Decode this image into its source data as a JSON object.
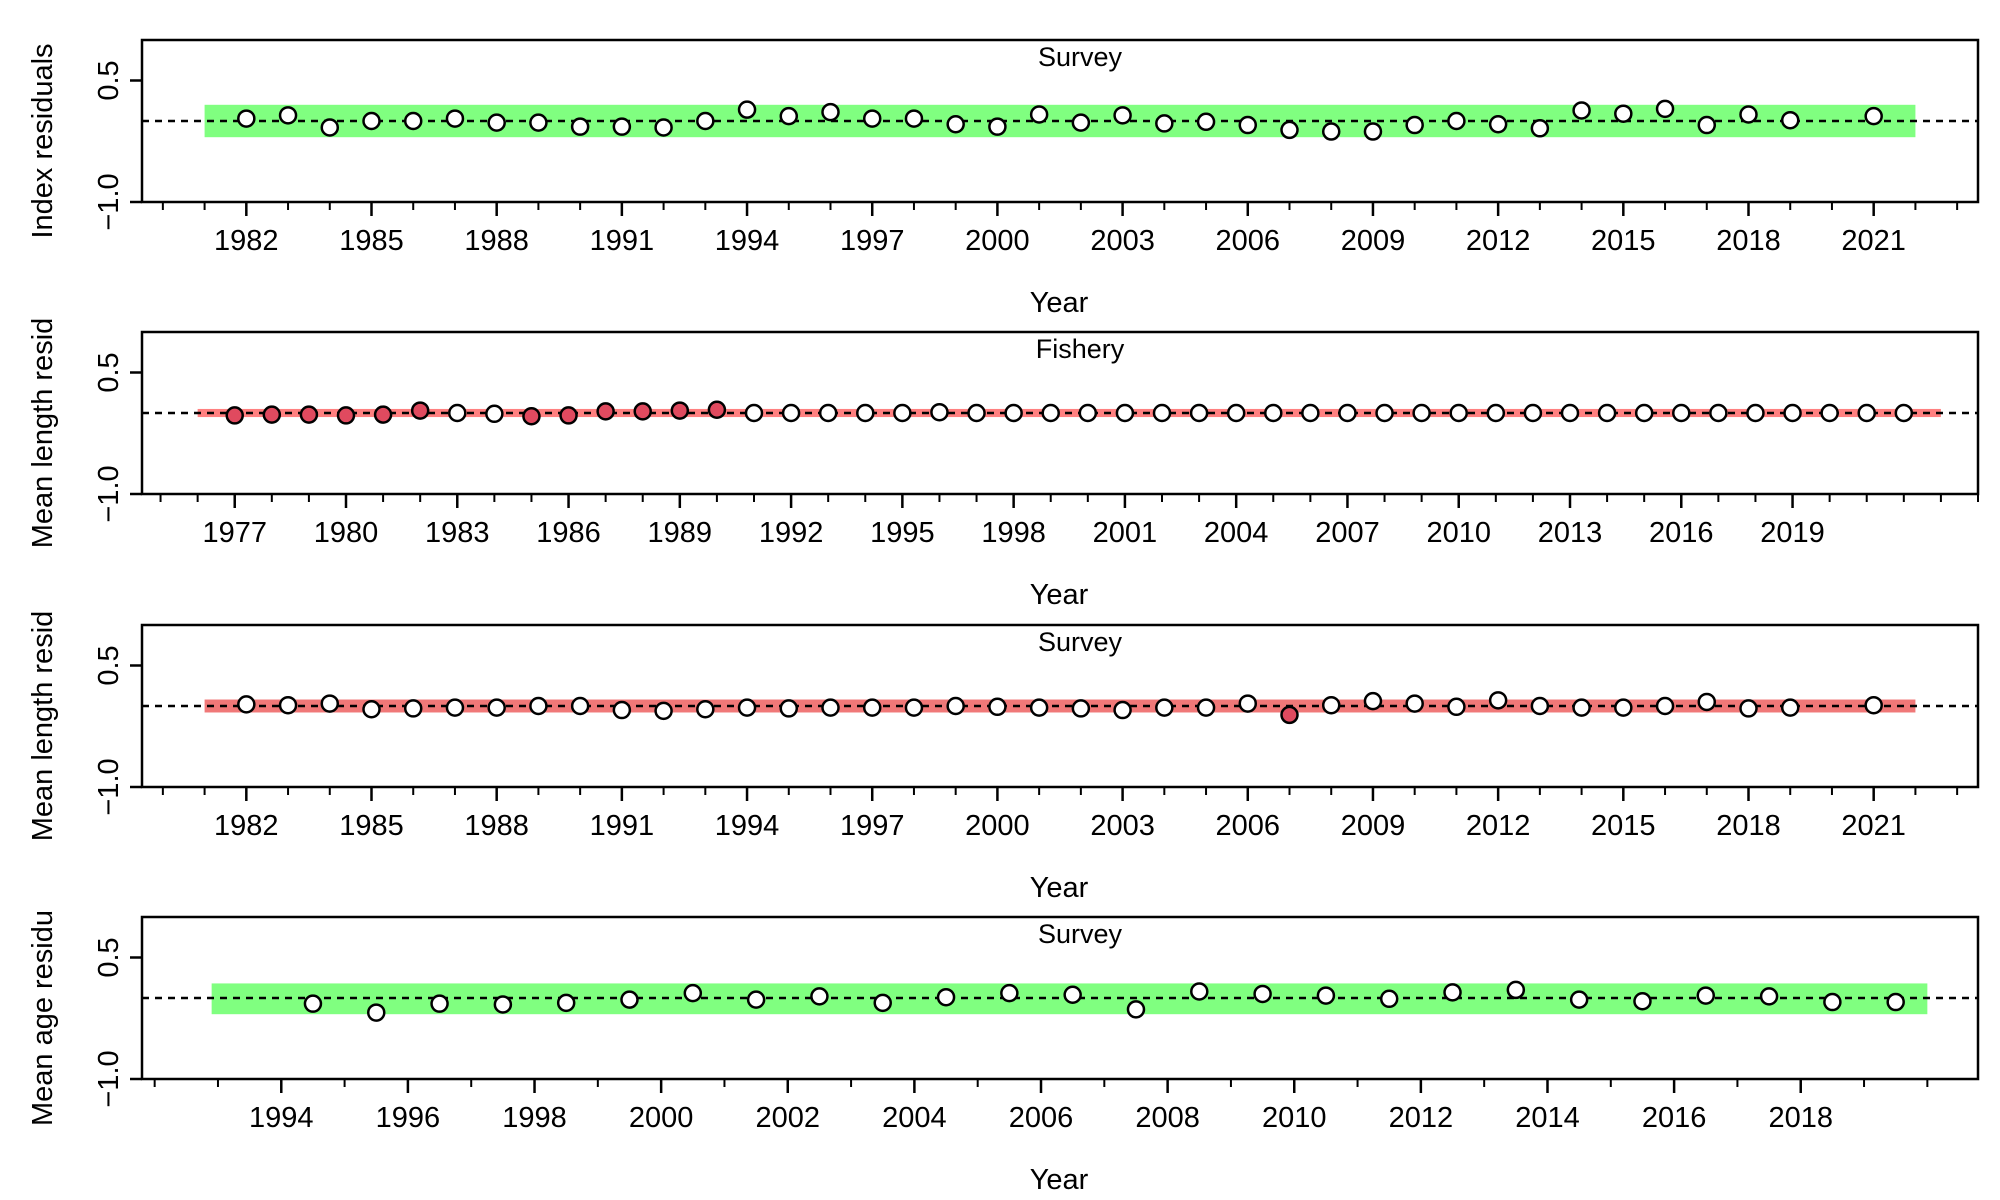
{
  "chart_data": [
    {
      "type": "scatter",
      "title": "Survey",
      "xlabel": "Year",
      "ylabel": "Index residuals",
      "ylim": [
        -1.0,
        1.0
      ],
      "y_ticks": [
        -1.0,
        0.5
      ],
      "y_tick_labels": [
        "−1.0",
        "0.5"
      ],
      "x_ticks": [
        1982,
        1985,
        1988,
        1991,
        1994,
        1997,
        2000,
        2003,
        2006,
        2009,
        2012,
        2015,
        2018,
        2021
      ],
      "x_minor_every": 1,
      "xlim": [
        1979.5,
        2023.5
      ],
      "band": {
        "xrange": [
          1981,
          2022
        ],
        "ymin": -0.2,
        "ymax": 0.2,
        "color": "#80ff80"
      },
      "reference_line": 0,
      "point_fill": "#ffffff",
      "highlight_fill": "#e04a5f",
      "points": [
        {
          "x": 1982,
          "y": 0.03
        },
        {
          "x": 1983,
          "y": 0.07
        },
        {
          "x": 1984,
          "y": -0.08
        },
        {
          "x": 1985,
          "y": 0.0
        },
        {
          "x": 1986,
          "y": 0.0
        },
        {
          "x": 1987,
          "y": 0.03
        },
        {
          "x": 1988,
          "y": -0.02
        },
        {
          "x": 1989,
          "y": -0.02
        },
        {
          "x": 1990,
          "y": -0.07
        },
        {
          "x": 1991,
          "y": -0.07
        },
        {
          "x": 1992,
          "y": -0.08
        },
        {
          "x": 1993,
          "y": 0.0
        },
        {
          "x": 1994,
          "y": 0.14
        },
        {
          "x": 1995,
          "y": 0.06
        },
        {
          "x": 1996,
          "y": 0.11
        },
        {
          "x": 1997,
          "y": 0.03
        },
        {
          "x": 1998,
          "y": 0.03
        },
        {
          "x": 1999,
          "y": -0.04
        },
        {
          "x": 2000,
          "y": -0.07
        },
        {
          "x": 2001,
          "y": 0.08
        },
        {
          "x": 2002,
          "y": -0.02
        },
        {
          "x": 2003,
          "y": 0.07
        },
        {
          "x": 2004,
          "y": -0.03
        },
        {
          "x": 2005,
          "y": -0.01
        },
        {
          "x": 2006,
          "y": -0.05
        },
        {
          "x": 2007,
          "y": -0.11
        },
        {
          "x": 2008,
          "y": -0.13
        },
        {
          "x": 2009,
          "y": -0.13
        },
        {
          "x": 2010,
          "y": -0.05
        },
        {
          "x": 2011,
          "y": 0.0
        },
        {
          "x": 2012,
          "y": -0.04
        },
        {
          "x": 2013,
          "y": -0.09
        },
        {
          "x": 2014,
          "y": 0.13
        },
        {
          "x": 2015,
          "y": 0.09
        },
        {
          "x": 2016,
          "y": 0.15
        },
        {
          "x": 2017,
          "y": -0.05
        },
        {
          "x": 2018,
          "y": 0.08
        },
        {
          "x": 2019,
          "y": 0.01
        },
        {
          "x": 2021,
          "y": 0.06
        }
      ]
    },
    {
      "type": "scatter",
      "title": "Fishery",
      "xlabel": "Year",
      "ylabel": "Mean length resid",
      "ylim": [
        -1.0,
        1.0
      ],
      "y_ticks": [
        -1.0,
        0.5
      ],
      "y_tick_labels": [
        "−1.0",
        "0.5"
      ],
      "x_ticks": [
        1977,
        1980,
        1983,
        1986,
        1989,
        1992,
        1995,
        1998,
        2001,
        2004,
        2007,
        2010,
        2013,
        2016,
        2019
      ],
      "x_minor_every": 1,
      "xlim": [
        1974.5,
        2024.0
      ],
      "band": {
        "xrange": [
          1976,
          2023
        ],
        "ymin": -0.05,
        "ymax": 0.05,
        "color": "#ff8080"
      },
      "reference_line": 0,
      "point_fill": "#ffffff",
      "highlight_fill": "#e04a5f",
      "points": [
        {
          "x": 1977,
          "y": -0.03,
          "h": true
        },
        {
          "x": 1978,
          "y": -0.02,
          "h": true
        },
        {
          "x": 1979,
          "y": -0.02,
          "h": true
        },
        {
          "x": 1980,
          "y": -0.03,
          "h": true
        },
        {
          "x": 1981,
          "y": -0.02,
          "h": true
        },
        {
          "x": 1982,
          "y": 0.03,
          "h": true
        },
        {
          "x": 1983,
          "y": 0.0
        },
        {
          "x": 1984,
          "y": -0.01
        },
        {
          "x": 1985,
          "y": -0.04,
          "h": true
        },
        {
          "x": 1986,
          "y": -0.03,
          "h": true
        },
        {
          "x": 1987,
          "y": 0.02,
          "h": true
        },
        {
          "x": 1988,
          "y": 0.02,
          "h": true
        },
        {
          "x": 1989,
          "y": 0.03,
          "h": true
        },
        {
          "x": 1990,
          "y": 0.04,
          "h": true
        },
        {
          "x": 1991,
          "y": 0.0
        },
        {
          "x": 1992,
          "y": 0.0
        },
        {
          "x": 1993,
          "y": 0.0
        },
        {
          "x": 1994,
          "y": 0.0
        },
        {
          "x": 1995,
          "y": 0.0
        },
        {
          "x": 1996,
          "y": 0.01
        },
        {
          "x": 1997,
          "y": 0.0
        },
        {
          "x": 1998,
          "y": 0.0
        },
        {
          "x": 1999,
          "y": 0.0
        },
        {
          "x": 2000,
          "y": 0.0
        },
        {
          "x": 2001,
          "y": 0.0
        },
        {
          "x": 2002,
          "y": 0.0
        },
        {
          "x": 2003,
          "y": 0.0
        },
        {
          "x": 2004,
          "y": 0.0
        },
        {
          "x": 2005,
          "y": 0.0
        },
        {
          "x": 2006,
          "y": 0.0
        },
        {
          "x": 2007,
          "y": 0.0
        },
        {
          "x": 2008,
          "y": 0.0
        },
        {
          "x": 2009,
          "y": 0.0
        },
        {
          "x": 2010,
          "y": 0.0
        },
        {
          "x": 2011,
          "y": 0.0
        },
        {
          "x": 2012,
          "y": 0.0
        },
        {
          "x": 2013,
          "y": 0.0
        },
        {
          "x": 2014,
          "y": 0.0
        },
        {
          "x": 2015,
          "y": 0.0
        },
        {
          "x": 2016,
          "y": 0.0
        },
        {
          "x": 2017,
          "y": 0.0
        },
        {
          "x": 2018,
          "y": 0.0
        },
        {
          "x": 2019,
          "y": 0.0
        },
        {
          "x": 2020,
          "y": 0.0
        },
        {
          "x": 2021,
          "y": 0.0
        },
        {
          "x": 2022,
          "y": 0.0
        }
      ]
    },
    {
      "type": "scatter",
      "title": "Survey",
      "xlabel": "Year",
      "ylabel": "Mean length resid",
      "ylim": [
        -1.0,
        1.0
      ],
      "y_ticks": [
        -1.0,
        0.5
      ],
      "y_tick_labels": [
        "−1.0",
        "0.5"
      ],
      "x_ticks": [
        1982,
        1985,
        1988,
        1991,
        1994,
        1997,
        2000,
        2003,
        2006,
        2009,
        2012,
        2015,
        2018,
        2021
      ],
      "x_minor_every": 1,
      "xlim": [
        1979.5,
        2023.5
      ],
      "band": {
        "xrange": [
          1981,
          2022
        ],
        "ymin": -0.08,
        "ymax": 0.08,
        "color": "#f07878"
      },
      "reference_line": 0,
      "point_fill": "#ffffff",
      "highlight_fill": "#e04a5f",
      "points": [
        {
          "x": 1982,
          "y": 0.02
        },
        {
          "x": 1983,
          "y": 0.01
        },
        {
          "x": 1984,
          "y": 0.03
        },
        {
          "x": 1985,
          "y": -0.04
        },
        {
          "x": 1986,
          "y": -0.03
        },
        {
          "x": 1987,
          "y": -0.02
        },
        {
          "x": 1988,
          "y": -0.02
        },
        {
          "x": 1989,
          "y": 0.0
        },
        {
          "x": 1990,
          "y": 0.0
        },
        {
          "x": 1991,
          "y": -0.05
        },
        {
          "x": 1992,
          "y": -0.06
        },
        {
          "x": 1993,
          "y": -0.04
        },
        {
          "x": 1994,
          "y": -0.02
        },
        {
          "x": 1995,
          "y": -0.03
        },
        {
          "x": 1996,
          "y": -0.02
        },
        {
          "x": 1997,
          "y": -0.02
        },
        {
          "x": 1998,
          "y": -0.02
        },
        {
          "x": 1999,
          "y": 0.0
        },
        {
          "x": 2000,
          "y": -0.01
        },
        {
          "x": 2001,
          "y": -0.02
        },
        {
          "x": 2002,
          "y": -0.03
        },
        {
          "x": 2003,
          "y": -0.05
        },
        {
          "x": 2004,
          "y": -0.02
        },
        {
          "x": 2005,
          "y": -0.02
        },
        {
          "x": 2006,
          "y": 0.03
        },
        {
          "x": 2007,
          "y": -0.11,
          "h": true
        },
        {
          "x": 2008,
          "y": 0.01
        },
        {
          "x": 2009,
          "y": 0.06
        },
        {
          "x": 2010,
          "y": 0.03
        },
        {
          "x": 2011,
          "y": -0.01
        },
        {
          "x": 2012,
          "y": 0.07
        },
        {
          "x": 2013,
          "y": 0.0
        },
        {
          "x": 2014,
          "y": -0.02
        },
        {
          "x": 2015,
          "y": -0.02
        },
        {
          "x": 2016,
          "y": 0.0
        },
        {
          "x": 2017,
          "y": 0.05
        },
        {
          "x": 2018,
          "y": -0.03
        },
        {
          "x": 2019,
          "y": -0.02
        },
        {
          "x": 2021,
          "y": 0.01
        }
      ]
    },
    {
      "type": "scatter",
      "title": "Survey",
      "xlabel": "Year",
      "ylabel": "Mean age residu",
      "ylim": [
        -1.0,
        1.0
      ],
      "y_ticks": [
        -1.0,
        0.5
      ],
      "y_tick_labels": [
        "−1.0",
        "0.5"
      ],
      "x_ticks": [
        1994,
        1996,
        1998,
        2000,
        2002,
        2004,
        2006,
        2008,
        2010,
        2012,
        2014,
        2016,
        2018
      ],
      "x_minor_every": 1,
      "xlim": [
        1991.8,
        2020.8
      ],
      "band": {
        "xrange": [
          1992.9,
          2020.0
        ],
        "ymin": -0.2,
        "ymax": 0.18,
        "color": "#80ff80"
      },
      "reference_line": 0,
      "point_fill": "#ffffff",
      "highlight_fill": "#e04a5f",
      "points": [
        {
          "x": 1994.5,
          "y": -0.07
        },
        {
          "x": 1995.5,
          "y": -0.18
        },
        {
          "x": 1996.5,
          "y": -0.07
        },
        {
          "x": 1997.5,
          "y": -0.08
        },
        {
          "x": 1998.5,
          "y": -0.06
        },
        {
          "x": 1999.5,
          "y": -0.02
        },
        {
          "x": 2000.5,
          "y": 0.06
        },
        {
          "x": 2001.5,
          "y": -0.02
        },
        {
          "x": 2002.5,
          "y": 0.02
        },
        {
          "x": 2003.5,
          "y": -0.06
        },
        {
          "x": 2004.5,
          "y": 0.01
        },
        {
          "x": 2005.5,
          "y": 0.06
        },
        {
          "x": 2006.5,
          "y": 0.04
        },
        {
          "x": 2007.5,
          "y": -0.14
        },
        {
          "x": 2008.5,
          "y": 0.08
        },
        {
          "x": 2009.5,
          "y": 0.05
        },
        {
          "x": 2010.5,
          "y": 0.03
        },
        {
          "x": 2011.5,
          "y": -0.01
        },
        {
          "x": 2012.5,
          "y": 0.07
        },
        {
          "x": 2013.5,
          "y": 0.1
        },
        {
          "x": 2014.5,
          "y": -0.02
        },
        {
          "x": 2015.5,
          "y": -0.04
        },
        {
          "x": 2016.5,
          "y": 0.03
        },
        {
          "x": 2017.5,
          "y": 0.02
        },
        {
          "x": 2018.5,
          "y": -0.05
        },
        {
          "x": 2019.5,
          "y": -0.05
        }
      ]
    }
  ]
}
